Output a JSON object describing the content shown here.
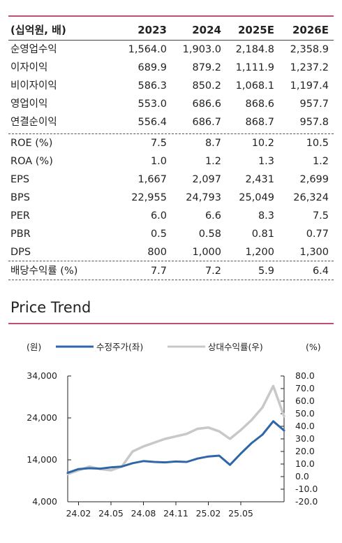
{
  "table": {
    "header": {
      "label": "(십억원, 배)",
      "cols": [
        "2023",
        "2024",
        "2025E",
        "2026E"
      ]
    },
    "rows": [
      {
        "label": "순영업수익",
        "values": [
          "1,564.0",
          "1,903.0",
          "2,184.8",
          "2,358.9"
        ]
      },
      {
        "label": "이자이익",
        "values": [
          "689.9",
          "879.2",
          "1,111.9",
          "1,237.2"
        ]
      },
      {
        "label": "비이자이익",
        "values": [
          "586.3",
          "850.2",
          "1,068.1",
          "1,197.4"
        ]
      },
      {
        "label": "영업이익",
        "values": [
          "553.0",
          "686.6",
          "868.6",
          "957.7"
        ]
      },
      {
        "label": "연결순이익",
        "values": [
          "556.4",
          "686.7",
          "868.7",
          "957.8"
        ]
      },
      {
        "label": "ROE (%)",
        "values": [
          "7.5",
          "8.7",
          "10.2",
          "10.5"
        ]
      },
      {
        "label": "ROA (%)",
        "values": [
          "1.0",
          "1.2",
          "1.3",
          "1.2"
        ]
      },
      {
        "label": "EPS",
        "values": [
          "1,667",
          "2,097",
          "2,431",
          "2,699"
        ]
      },
      {
        "label": "BPS",
        "values": [
          "22,955",
          "24,793",
          "25,049",
          "26,324"
        ]
      },
      {
        "label": "PER",
        "values": [
          "6.0",
          "6.6",
          "8.3",
          "7.5"
        ]
      },
      {
        "label": "PBR",
        "values": [
          "0.5",
          "0.58",
          "0.81",
          "0.77"
        ]
      },
      {
        "label": "DPS",
        "values": [
          "800",
          "1,000",
          "1,200",
          "1,300"
        ]
      },
      {
        "label": "배당수익률 (%)",
        "values": [
          "7.7",
          "7.2",
          "5.9",
          "6.4"
        ]
      }
    ]
  },
  "price_trend": {
    "title": "Price Trend"
  },
  "chart_data": {
    "type": "line",
    "title": "Price Trend",
    "left_unit": "(원)",
    "right_unit": "(%)",
    "legend_placement": "top",
    "x_ticks": [
      "24.02",
      "24.05",
      "24.08",
      "24.11",
      "25.02",
      "25.05"
    ],
    "y_left_ticks": [
      "34,000",
      "24,000",
      "14,000",
      "4,000"
    ],
    "y_left_range": [
      4000,
      34000
    ],
    "y_right_ticks": [
      "80.0",
      "70.0",
      "60.0",
      "50.0",
      "40.0",
      "30.0",
      "20.0",
      "10.0",
      "0.0",
      "-10.0",
      "-20.0"
    ],
    "y_right_range": [
      -20,
      80
    ],
    "series": [
      {
        "name": "수정주가(좌)",
        "color": "#2e66a8",
        "axis": "left",
        "points": [
          [
            "24.01",
            10900
          ],
          [
            "24.02",
            11800
          ],
          [
            "24.03",
            12000
          ],
          [
            "24.04",
            11900
          ],
          [
            "24.05",
            12200
          ],
          [
            "24.06",
            12400
          ],
          [
            "24.07",
            13200
          ],
          [
            "24.08",
            13700
          ],
          [
            "24.09",
            13500
          ],
          [
            "24.10",
            13400
          ],
          [
            "24.11",
            13600
          ],
          [
            "24.12",
            13500
          ],
          [
            "25.01",
            14300
          ],
          [
            "25.02",
            14800
          ],
          [
            "25.03",
            15000
          ],
          [
            "25.04",
            12800
          ],
          [
            "25.05",
            15500
          ],
          [
            "25.06",
            18000
          ],
          [
            "25.07",
            20000
          ],
          [
            "25.08",
            23200
          ],
          [
            "25.09",
            21000
          ]
        ]
      },
      {
        "name": "상대수익률(우)",
        "color": "#c8c8c8",
        "axis": "right",
        "points": [
          [
            "24.01",
            2.0
          ],
          [
            "24.02",
            5.0
          ],
          [
            "24.03",
            8.0
          ],
          [
            "24.04",
            6.0
          ],
          [
            "24.05",
            5.0
          ],
          [
            "24.06",
            8.0
          ],
          [
            "24.07",
            20.0
          ],
          [
            "24.08",
            24.0
          ],
          [
            "24.09",
            27.0
          ],
          [
            "24.10",
            30.0
          ],
          [
            "24.11",
            32.0
          ],
          [
            "24.12",
            34.0
          ],
          [
            "25.01",
            38.0
          ],
          [
            "25.02",
            39.0
          ],
          [
            "25.03",
            36.0
          ],
          [
            "25.04",
            30.0
          ],
          [
            "25.05",
            37.0
          ],
          [
            "25.06",
            45.0
          ],
          [
            "25.07",
            55.0
          ],
          [
            "25.08",
            72.0
          ],
          [
            "25.09",
            48.0
          ]
        ]
      }
    ]
  }
}
